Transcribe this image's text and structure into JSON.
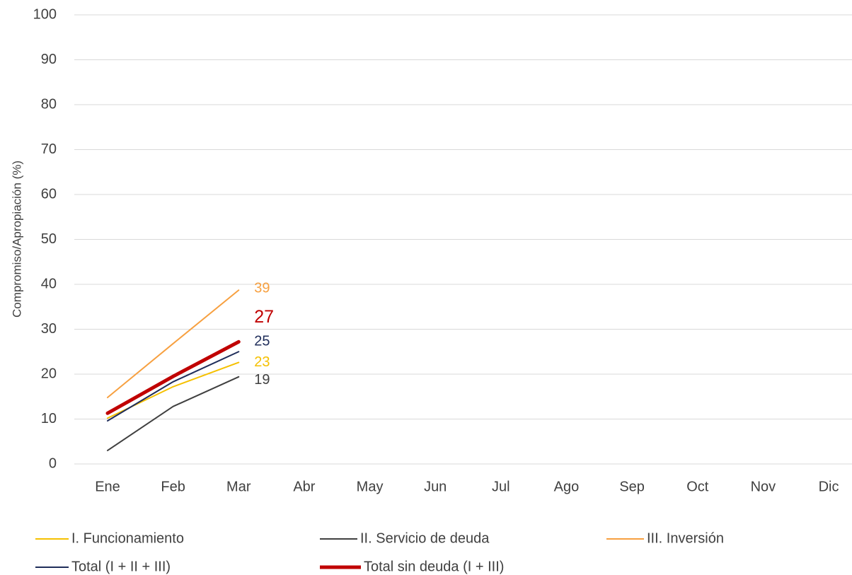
{
  "chart_data": {
    "type": "line",
    "y_label": "Compromiso/Apropiación (%)",
    "categories": [
      "Ene",
      "Feb",
      "Mar",
      "Abr",
      "May",
      "Jun",
      "Jul",
      "Ago",
      "Sep",
      "Oct",
      "Nov",
      "Dic"
    ],
    "ylim": [
      0,
      100
    ],
    "yticks": [
      0,
      10,
      20,
      30,
      40,
      50,
      60,
      70,
      80,
      90,
      100
    ],
    "grid": true,
    "series": [
      {
        "name": "I. Funcionamiento",
        "color": "#f5c000",
        "values": [
          10.2,
          17.2,
          22.6,
          null,
          null,
          null,
          null,
          null,
          null,
          null,
          null,
          null
        ],
        "value_labels": [
          null,
          null,
          "23",
          null,
          null,
          null,
          null,
          null,
          null,
          null,
          null,
          null
        ]
      },
      {
        "name": "II. Servicio de deuda",
        "color": "#404040",
        "values": [
          3.0,
          12.8,
          19.4,
          null,
          null,
          null,
          null,
          null,
          null,
          null,
          null,
          null
        ],
        "value_labels": [
          null,
          null,
          "19",
          null,
          null,
          null,
          null,
          null,
          null,
          null,
          null,
          null
        ]
      },
      {
        "name": "III. Inversión",
        "color": "#f7a040",
        "values": [
          14.8,
          26.8,
          38.7,
          null,
          null,
          null,
          null,
          null,
          null,
          null,
          null,
          null
        ],
        "value_labels": [
          null,
          null,
          "39",
          null,
          null,
          null,
          null,
          null,
          null,
          null,
          null,
          null
        ]
      },
      {
        "name": "Total (I + II + III)",
        "color": "#1f2d5a",
        "values": [
          9.6,
          18.3,
          25.0,
          null,
          null,
          null,
          null,
          null,
          null,
          null,
          null,
          null
        ],
        "value_labels": [
          null,
          null,
          "25",
          null,
          null,
          null,
          null,
          null,
          null,
          null,
          null,
          null
        ]
      },
      {
        "name": "Total sin deuda (I + III)",
        "color": "#c00000",
        "values": [
          11.3,
          19.5,
          27.2,
          null,
          null,
          null,
          null,
          null,
          null,
          null,
          null,
          null
        ],
        "value_labels": [
          null,
          null,
          "27",
          null,
          null,
          null,
          null,
          null,
          null,
          null,
          null,
          null
        ]
      }
    ]
  }
}
